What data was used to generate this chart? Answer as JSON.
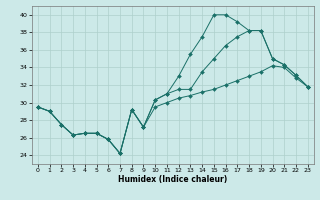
{
  "xlabel": "Humidex (Indice chaleur)",
  "xlim": [
    -0.5,
    23.5
  ],
  "ylim": [
    23,
    41
  ],
  "yticks": [
    24,
    26,
    28,
    30,
    32,
    34,
    36,
    38,
    40
  ],
  "xticks": [
    0,
    1,
    2,
    3,
    4,
    5,
    6,
    7,
    8,
    9,
    10,
    11,
    12,
    13,
    14,
    15,
    16,
    17,
    18,
    19,
    20,
    21,
    22,
    23
  ],
  "bg_color": "#cce9e8",
  "grid_color": "#aed0cc",
  "line_color": "#1a7068",
  "curve1": [
    29.5,
    29.0,
    27.5,
    26.3,
    26.5,
    26.5,
    25.8,
    24.2,
    29.2,
    27.2,
    30.3,
    31.0,
    33.0,
    35.5,
    37.5,
    40.0,
    40.0,
    39.2,
    38.2,
    38.2,
    35.0,
    34.3,
    33.1,
    31.8
  ],
  "curve2": [
    29.5,
    29.0,
    27.5,
    26.3,
    26.5,
    26.5,
    25.8,
    24.2,
    29.2,
    27.2,
    30.3,
    31.0,
    31.5,
    31.5,
    33.5,
    35.0,
    36.5,
    37.5,
    38.2,
    38.2,
    35.0,
    34.3,
    33.1,
    31.8
  ],
  "curve3": [
    29.5,
    29.0,
    27.5,
    26.3,
    26.5,
    26.5,
    25.8,
    24.2,
    29.2,
    27.2,
    29.5,
    30.0,
    30.5,
    30.8,
    31.2,
    31.5,
    32.0,
    32.5,
    33.0,
    33.5,
    34.2,
    34.0,
    32.8,
    31.8
  ]
}
